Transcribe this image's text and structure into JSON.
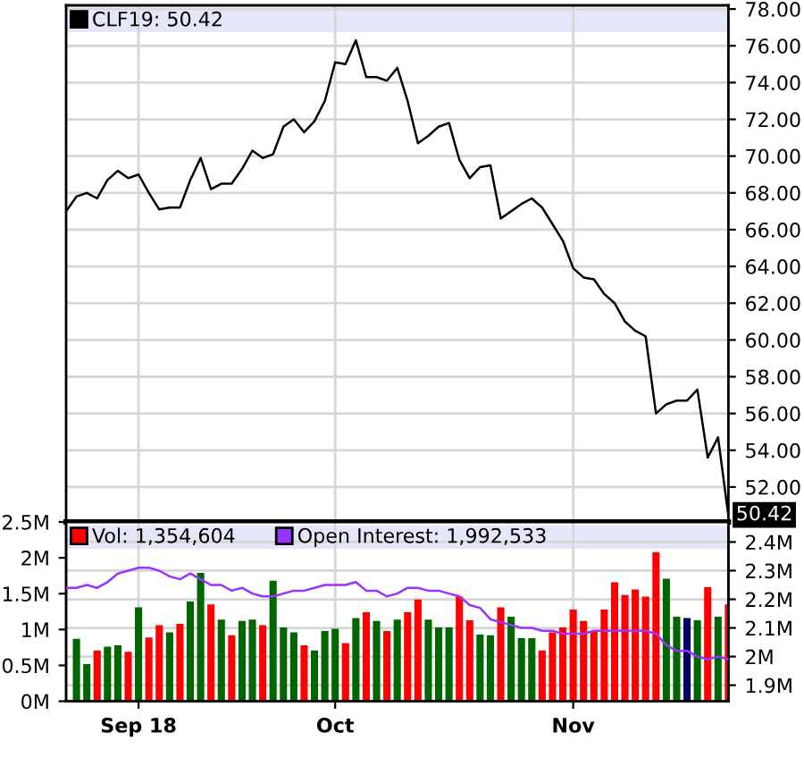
{
  "chart_data": [
    {
      "type": "line",
      "categories": [
        null,
        null,
        null,
        null,
        null,
        null,
        null,
        null,
        null,
        null,
        null,
        null,
        null,
        null,
        null,
        null,
        null,
        null,
        null,
        null,
        null,
        null,
        null,
        null,
        null,
        null,
        null,
        null,
        null,
        null,
        null,
        null,
        null,
        null,
        null,
        null,
        null,
        null,
        null,
        null,
        null,
        null,
        null,
        null,
        null,
        null,
        null,
        null,
        null,
        null,
        null,
        null,
        null,
        null,
        null,
        null,
        null,
        null,
        null,
        null,
        null,
        null,
        null,
        null,
        null
      ],
      "series": [
        {
          "name": "CLF19: 50.42",
          "color": "#000000",
          "values": [
            67.0,
            67.8,
            68.0,
            67.7,
            68.7,
            69.2,
            68.8,
            69.0,
            68.0,
            67.1,
            67.2,
            67.2,
            68.7,
            69.9,
            68.2,
            68.5,
            68.5,
            69.3,
            70.3,
            69.9,
            70.1,
            71.6,
            72.0,
            71.3,
            71.9,
            73.0,
            75.1,
            75.0,
            76.3,
            74.3,
            74.3,
            74.1,
            74.8,
            73.0,
            70.7,
            71.1,
            71.6,
            71.8,
            69.8,
            68.8,
            69.4,
            69.5,
            66.6,
            67.0,
            67.4,
            67.7,
            67.2,
            66.3,
            65.4,
            63.9,
            63.4,
            63.3,
            62.5,
            62.0,
            61.0,
            60.5,
            60.2,
            56.0,
            56.5,
            56.7,
            56.7,
            57.3,
            53.6,
            54.7,
            50.42
          ]
        }
      ],
      "ylim": [
        50.1,
        78.2
      ],
      "yticks": [
        {
          "value": 52,
          "label": "52.00"
        },
        {
          "value": 54,
          "label": "54.00"
        },
        {
          "value": 56,
          "label": "56.00"
        },
        {
          "value": 58,
          "label": "58.00"
        },
        {
          "value": 60,
          "label": "60.00"
        },
        {
          "value": 62,
          "label": "62.00"
        },
        {
          "value": 64,
          "label": "64.00"
        },
        {
          "value": 66,
          "label": "66.00"
        },
        {
          "value": 68,
          "label": "68.00"
        },
        {
          "value": 70,
          "label": "70.00"
        },
        {
          "value": 72,
          "label": "72.00"
        },
        {
          "value": 74,
          "label": "74.00"
        },
        {
          "value": 76,
          "label": "76.00"
        },
        {
          "value": 78,
          "label": "78.00"
        }
      ],
      "annotations": [
        "50.42"
      ],
      "grid": true,
      "legend": "top left",
      "tick_labels": "y"
    },
    {
      "type": "bar",
      "categories": [
        null,
        null,
        null,
        null,
        null,
        null,
        null,
        "Sep 18",
        null,
        null,
        null,
        null,
        null,
        null,
        null,
        null,
        null,
        null,
        null,
        null,
        null,
        null,
        null,
        null,
        null,
        null,
        "Oct",
        null,
        null,
        null,
        null,
        null,
        null,
        null,
        null,
        null,
        null,
        null,
        null,
        null,
        null,
        null,
        null,
        null,
        null,
        null,
        null,
        null,
        null,
        "Nov",
        null,
        null,
        null,
        null,
        null,
        null,
        null,
        null,
        null,
        null,
        null,
        null,
        null,
        null,
        null
      ],
      "series": [
        {
          "name": "Vol: 1,354,604",
          "type": "bar",
          "color": "#ff0000",
          "colors": [
            null,
            "#006600",
            "#006600",
            "#ff0000",
            "#006600",
            "#006600",
            "#ff0000",
            "#006600",
            "#ff0000",
            "#ff0000",
            "#006600",
            "#ff0000",
            "#006600",
            "#006600",
            "#ff0000",
            "#006600",
            "#ff0000",
            "#006600",
            "#006600",
            "#ff0000",
            "#006600",
            "#006600",
            "#006600",
            "#ff0000",
            "#006600",
            "#006600",
            "#006600",
            "#ff0000",
            "#006600",
            "#ff0000",
            "#006600",
            "#ff0000",
            "#006600",
            "#ff0000",
            "#ff0000",
            "#006600",
            "#006600",
            "#006600",
            "#ff0000",
            "#ff0000",
            "#006600",
            "#006600",
            "#ff0000",
            "#006600",
            "#006600",
            "#006600",
            "#ff0000",
            "#ff0000",
            "#ff0000",
            "#ff0000",
            "#ff0000",
            "#ff0000",
            "#ff0000",
            "#ff0000",
            "#ff0000",
            "#ff0000",
            "#ff0000",
            "#ff0000",
            "#006600",
            "#006600",
            "#000066",
            "#006600",
            "#ff0000",
            "#006600",
            "#ff0000"
          ],
          "values": [
            null,
            870000,
            520000,
            710000,
            760000,
            780000,
            690000,
            1310000,
            890000,
            1060000,
            960000,
            1080000,
            1390000,
            1790000,
            1350000,
            1140000,
            920000,
            1120000,
            1140000,
            1060000,
            1680000,
            1030000,
            960000,
            780000,
            710000,
            980000,
            1010000,
            810000,
            1160000,
            1240000,
            1120000,
            980000,
            1140000,
            1240000,
            1420000,
            1140000,
            1030000,
            1030000,
            1460000,
            1130000,
            930000,
            920000,
            1310000,
            1180000,
            880000,
            880000,
            710000,
            960000,
            1030000,
            1280000,
            1120000,
            980000,
            1280000,
            1660000,
            1480000,
            1560000,
            1460000,
            2080000,
            1710000,
            1180000,
            1160000,
            1130000,
            1590000,
            1180000,
            1350000
          ]
        },
        {
          "name": "Open Interest: 1,992,533",
          "type": "line",
          "axis": "y2",
          "color": "#9933ff",
          "values": [
            2240000,
            2240000,
            2250000,
            2240000,
            2260000,
            2290000,
            2300000,
            2310000,
            2310000,
            2300000,
            2280000,
            2270000,
            2290000,
            2270000,
            2250000,
            2250000,
            2230000,
            2240000,
            2220000,
            2210000,
            2210000,
            2220000,
            2230000,
            2230000,
            2240000,
            2250000,
            2250000,
            2250000,
            2260000,
            2230000,
            2230000,
            2210000,
            2220000,
            2240000,
            2240000,
            2230000,
            2230000,
            2220000,
            2210000,
            2180000,
            2170000,
            2130000,
            2120000,
            2110000,
            2100000,
            2100000,
            2090000,
            2090000,
            2080000,
            2080000,
            2080000,
            2090000,
            2090000,
            2090000,
            2090000,
            2090000,
            2090000,
            2080000,
            2040000,
            2020000,
            2020000,
            2000000,
            1990000,
            2000000,
            1990000
          ]
        }
      ],
      "ylim": [
        0,
        2500000
      ],
      "yticks": [
        {
          "value": 0,
          "label": "0M"
        },
        {
          "value": 500000,
          "label": "0.5M"
        },
        {
          "value": 1000000,
          "label": "1M"
        },
        {
          "value": 1500000,
          "label": "1.5M"
        },
        {
          "value": 2000000,
          "label": "2M"
        },
        {
          "value": 2500000,
          "label": "2.5M"
        }
      ],
      "y2lim": [
        1844000,
        2470000
      ],
      "y2ticks": [
        {
          "value": 1900000,
          "label": "1.9M"
        },
        {
          "value": 2000000,
          "label": "2M"
        },
        {
          "value": 2100000,
          "label": "2.1M"
        },
        {
          "value": 2200000,
          "label": "2.2M"
        },
        {
          "value": 2300000,
          "label": "2.3M"
        },
        {
          "value": 2400000,
          "label": "2.4M"
        }
      ],
      "grid": true,
      "legend": "top left"
    }
  ]
}
